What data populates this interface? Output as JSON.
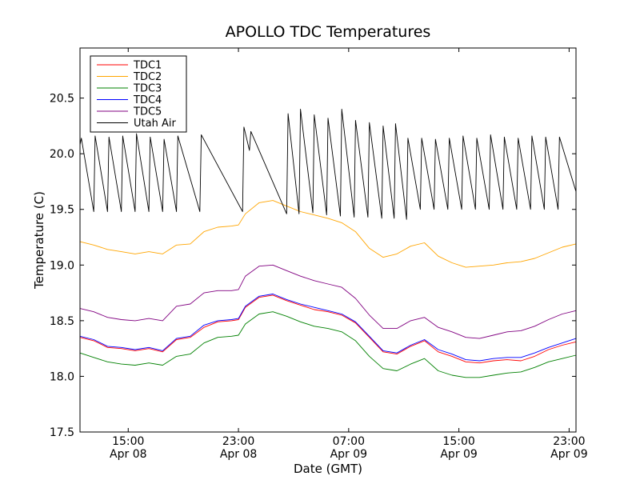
{
  "chart_data": {
    "type": "line",
    "title": "APOLLO TDC Temperatures",
    "xlabel": "Date (GMT)",
    "ylabel": "Temperature (C)",
    "xlim_hours": [
      11.5,
      47.5
    ],
    "ylim": [
      17.5,
      20.95
    ],
    "x_ticks": [
      {
        "hour": 15,
        "time": "15:00",
        "date": "Apr 08"
      },
      {
        "hour": 23,
        "time": "23:00",
        "date": "Apr 08"
      },
      {
        "hour": 31,
        "time": "07:00",
        "date": "Apr 09"
      },
      {
        "hour": 39,
        "time": "15:00",
        "date": "Apr 09"
      },
      {
        "hour": 47,
        "time": "23:00",
        "date": "Apr 09"
      }
    ],
    "y_ticks": [
      {
        "value": 17.5,
        "label": "17.5"
      },
      {
        "value": 18.0,
        "label": "18.0"
      },
      {
        "value": 18.5,
        "label": "18.5"
      },
      {
        "value": 19.0,
        "label": "19.0"
      },
      {
        "value": 19.5,
        "label": "19.5"
      },
      {
        "value": 20.0,
        "label": "20.0"
      },
      {
        "value": 20.5,
        "label": "20.5"
      }
    ],
    "legend_position": "top-left",
    "series": [
      {
        "name": "TDC1",
        "color": "#ff0000",
        "x": [
          11.5,
          12.5,
          13.5,
          14.5,
          15.5,
          16.5,
          17.5,
          18.5,
          19.5,
          20.5,
          21.5,
          22.5,
          23.0,
          23.5,
          24.5,
          25.5,
          26.5,
          27.5,
          28.5,
          29.5,
          30.5,
          31.5,
          32.5,
          33.5,
          34.5,
          35.5,
          36.5,
          37.5,
          38.5,
          39.5,
          40.5,
          41.5,
          42.5,
          43.5,
          44.5,
          45.5,
          46.5,
          47.5
        ],
        "y": [
          18.35,
          18.32,
          18.26,
          18.25,
          18.23,
          18.25,
          18.22,
          18.33,
          18.35,
          18.44,
          18.49,
          18.5,
          18.51,
          18.62,
          18.71,
          18.73,
          18.68,
          18.64,
          18.6,
          18.58,
          18.55,
          18.48,
          18.35,
          18.22,
          18.2,
          18.27,
          18.32,
          18.22,
          18.18,
          18.13,
          18.12,
          18.14,
          18.15,
          18.14,
          18.18,
          18.24,
          18.28,
          18.31
        ]
      },
      {
        "name": "TDC2",
        "color": "#ffa500",
        "x": [
          11.5,
          12.5,
          13.5,
          14.5,
          15.5,
          16.5,
          17.5,
          18.5,
          19.5,
          20.5,
          21.5,
          22.5,
          23.0,
          23.5,
          24.5,
          25.5,
          26.5,
          27.5,
          28.5,
          29.5,
          30.5,
          31.5,
          32.5,
          33.5,
          34.5,
          35.5,
          36.5,
          37.5,
          38.5,
          39.5,
          40.5,
          41.5,
          42.5,
          43.5,
          44.5,
          45.5,
          46.5,
          47.5
        ],
        "y": [
          19.21,
          19.18,
          19.14,
          19.12,
          19.1,
          19.12,
          19.1,
          19.18,
          19.19,
          19.3,
          19.34,
          19.35,
          19.36,
          19.46,
          19.56,
          19.58,
          19.53,
          19.48,
          19.45,
          19.42,
          19.38,
          19.3,
          19.15,
          19.07,
          19.1,
          19.17,
          19.2,
          19.08,
          19.02,
          18.98,
          18.99,
          19.0,
          19.02,
          19.03,
          19.06,
          19.11,
          19.16,
          19.19
        ]
      },
      {
        "name": "TDC3",
        "color": "#008000",
        "x": [
          11.5,
          12.5,
          13.5,
          14.5,
          15.5,
          16.5,
          17.5,
          18.5,
          19.5,
          20.5,
          21.5,
          22.5,
          23.0,
          23.5,
          24.5,
          25.5,
          26.5,
          27.5,
          28.5,
          29.5,
          30.5,
          31.5,
          32.5,
          33.5,
          34.5,
          35.5,
          36.5,
          37.5,
          38.5,
          39.5,
          40.5,
          41.5,
          42.5,
          43.5,
          44.5,
          45.5,
          46.5,
          47.5
        ],
        "y": [
          18.21,
          18.17,
          18.13,
          18.11,
          18.1,
          18.12,
          18.1,
          18.18,
          18.2,
          18.3,
          18.35,
          18.36,
          18.37,
          18.47,
          18.56,
          18.58,
          18.54,
          18.49,
          18.45,
          18.43,
          18.4,
          18.32,
          18.18,
          18.07,
          18.05,
          18.11,
          18.16,
          18.05,
          18.01,
          17.99,
          17.99,
          18.01,
          18.03,
          18.04,
          18.08,
          18.13,
          18.16,
          18.19
        ]
      },
      {
        "name": "TDC4",
        "color": "#0000ff",
        "x": [
          11.5,
          12.5,
          13.5,
          14.5,
          15.5,
          16.5,
          17.5,
          18.5,
          19.5,
          20.5,
          21.5,
          22.5,
          23.0,
          23.5,
          24.5,
          25.5,
          26.5,
          27.5,
          28.5,
          29.5,
          30.5,
          31.5,
          32.5,
          33.5,
          34.5,
          35.5,
          36.5,
          37.5,
          38.5,
          39.5,
          40.5,
          41.5,
          42.5,
          43.5,
          44.5,
          45.5,
          46.5,
          47.5
        ],
        "y": [
          18.36,
          18.33,
          18.27,
          18.26,
          18.24,
          18.26,
          18.23,
          18.34,
          18.36,
          18.46,
          18.5,
          18.51,
          18.52,
          18.63,
          18.72,
          18.74,
          18.69,
          18.65,
          18.62,
          18.59,
          18.56,
          18.49,
          18.36,
          18.23,
          18.21,
          18.28,
          18.33,
          18.24,
          18.2,
          18.15,
          18.14,
          18.16,
          18.17,
          18.17,
          18.21,
          18.26,
          18.3,
          18.34
        ]
      },
      {
        "name": "TDC5",
        "color": "#800080",
        "x": [
          11.5,
          12.5,
          13.5,
          14.5,
          15.5,
          16.5,
          17.5,
          18.5,
          19.5,
          20.5,
          21.5,
          22.5,
          23.0,
          23.5,
          24.5,
          25.5,
          26.5,
          27.5,
          28.5,
          29.5,
          30.5,
          31.5,
          32.5,
          33.5,
          34.5,
          35.5,
          36.5,
          37.5,
          38.5,
          39.5,
          40.5,
          41.5,
          42.5,
          43.5,
          44.5,
          45.5,
          46.5,
          47.5
        ],
        "y": [
          18.61,
          18.58,
          18.53,
          18.51,
          18.5,
          18.52,
          18.5,
          18.63,
          18.65,
          18.75,
          18.77,
          18.77,
          18.78,
          18.9,
          18.99,
          19.0,
          18.95,
          18.9,
          18.86,
          18.83,
          18.8,
          18.7,
          18.55,
          18.43,
          18.43,
          18.5,
          18.53,
          18.44,
          18.4,
          18.35,
          18.34,
          18.37,
          18.4,
          18.41,
          18.45,
          18.51,
          18.56,
          18.59
        ]
      },
      {
        "name": "Utah Air",
        "color": "#000000",
        "x": [
          11.5,
          11.6,
          12.5,
          12.6,
          13.5,
          13.6,
          14.5,
          14.6,
          15.5,
          15.6,
          16.5,
          16.6,
          17.5,
          17.6,
          18.5,
          18.6,
          20.2,
          20.3,
          23.3,
          23.4,
          23.8,
          23.9,
          26.5,
          26.6,
          27.4,
          27.5,
          28.4,
          28.5,
          29.4,
          29.5,
          30.4,
          30.5,
          31.4,
          31.5,
          32.4,
          32.5,
          33.4,
          33.5,
          34.3,
          34.4,
          35.2,
          35.3,
          36.2,
          36.3,
          37.2,
          37.3,
          38.2,
          38.3,
          39.2,
          39.3,
          40.2,
          40.3,
          41.2,
          41.3,
          42.2,
          42.3,
          43.2,
          43.3,
          44.2,
          44.3,
          45.2,
          45.3,
          46.2,
          46.3,
          47.5
        ],
        "y": [
          20.08,
          20.14,
          19.48,
          20.16,
          19.48,
          20.15,
          19.48,
          20.16,
          19.48,
          20.18,
          19.48,
          20.15,
          19.48,
          20.13,
          19.48,
          20.16,
          19.48,
          20.17,
          19.48,
          20.24,
          20.03,
          20.2,
          19.46,
          20.36,
          19.46,
          20.4,
          19.47,
          20.35,
          19.45,
          20.32,
          19.44,
          20.4,
          19.43,
          20.3,
          19.43,
          20.28,
          19.42,
          20.25,
          19.42,
          20.27,
          19.41,
          20.14,
          19.5,
          20.14,
          19.5,
          20.13,
          19.5,
          20.14,
          19.5,
          20.16,
          19.5,
          20.14,
          19.5,
          20.17,
          19.5,
          20.15,
          19.5,
          20.14,
          19.5,
          20.16,
          19.5,
          20.15,
          19.5,
          20.15,
          19.66
        ]
      }
    ]
  }
}
